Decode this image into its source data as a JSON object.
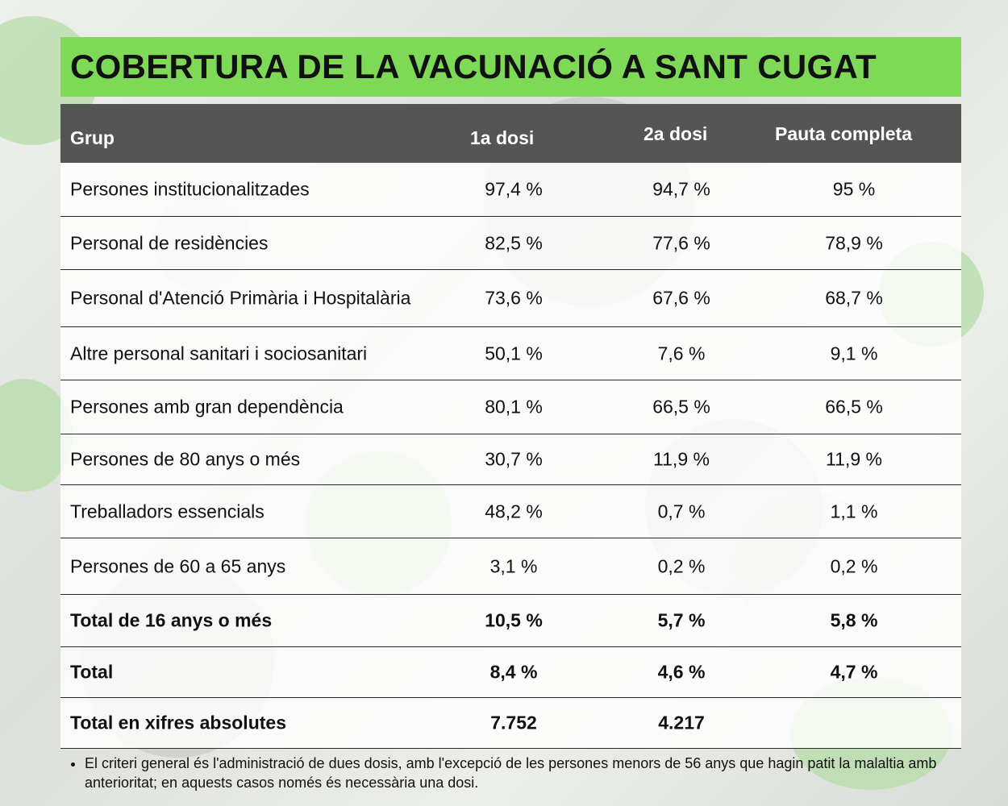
{
  "title": "COBERTURA DE LA VACUNACIÓ A SANT CUGAT",
  "table": {
    "headers": {
      "group": "Grup",
      "dose1": "1a dosi",
      "dose2": "2a dosi",
      "complete": "Pauta completa"
    },
    "rows": [
      {
        "group": "Persones institucionalitzades",
        "dose1": "97,4 %",
        "dose2": "94,7 %",
        "complete": "95 %"
      },
      {
        "group": "Personal de residències",
        "dose1": "82,5 %",
        "dose2": "77,6 %",
        "complete": "78,9 %"
      },
      {
        "group": "Personal d'Atenció Primària i Hospitalària",
        "dose1": "73,6 %",
        "dose2": "67,6 %",
        "complete": "68,7 %"
      },
      {
        "group": "Altre personal sanitari i sociosanitari",
        "dose1": "50,1 %",
        "dose2": "7,6 %",
        "complete": "9,1 %"
      },
      {
        "group": "Persones amb gran dependència",
        "dose1": "80,1 %",
        "dose2": "66,5 %",
        "complete": "66,5 %"
      },
      {
        "group": "Persones de 80 anys o més",
        "dose1": "30,7 %",
        "dose2": "11,9 %",
        "complete": "11,9 %"
      },
      {
        "group": "Treballadors essencials",
        "dose1": "48,2 %",
        "dose2": "0,7 %",
        "complete": "1,1 %"
      },
      {
        "group": "Persones de 60 a 65 anys",
        "dose1": "3,1 %",
        "dose2": "0,2 %",
        "complete": "0,2 %"
      },
      {
        "group": "Total de 16 anys o més",
        "dose1": "10,5 %",
        "dose2": "5,7 %",
        "complete": "5,8 %"
      },
      {
        "group": "Total",
        "dose1": "8,4 %",
        "dose2": "4,6 %",
        "complete": "4,7 %"
      },
      {
        "group": "Total en xifres absolutes",
        "dose1": "7.752",
        "dose2": "4.217",
        "complete": ""
      }
    ]
  },
  "note": "El criteri general és l'administració de dues dosis, amb l'excepció de les persones menors de 56 anys que hagin patit la malaltia amb anterioritat; en aquests casos només és necessària una dosi.",
  "colors": {
    "title_bar": "#7ed957",
    "header_bar": "#555555"
  }
}
